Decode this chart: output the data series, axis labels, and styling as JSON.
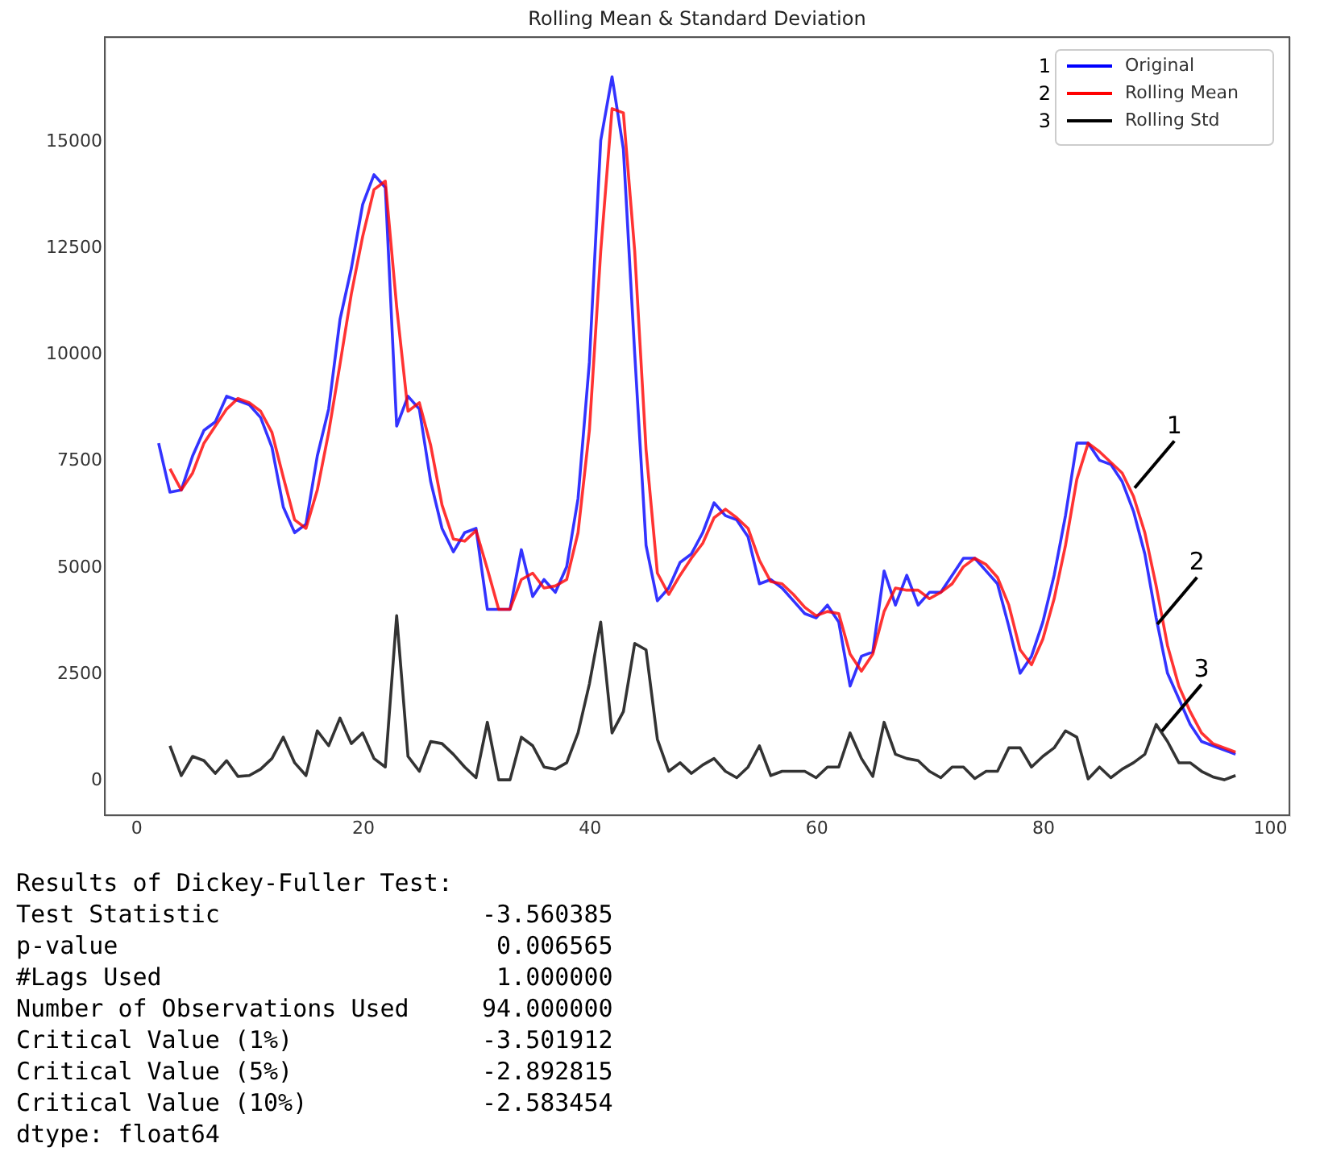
{
  "chart_data": {
    "type": "line",
    "title": "Rolling Mean & Standard Deviation",
    "xlim": [
      -2.75,
      101.75
    ],
    "xticks": [
      0,
      20,
      40,
      60,
      80,
      100
    ],
    "ylim": [
      -830,
      17430
    ],
    "yticks": [
      0,
      2500,
      5000,
      7500,
      10000,
      12500,
      15000
    ],
    "grid": false,
    "legend": "top right",
    "marker": "none",
    "line_style": "solid",
    "series": [
      {
        "name": "Original",
        "color": "#0000ff",
        "x": [
          2,
          3,
          4,
          5,
          6,
          7,
          8,
          9,
          10,
          11,
          12,
          13,
          14,
          15,
          16,
          17,
          18,
          19,
          20,
          21,
          22,
          23,
          24,
          25,
          26,
          27,
          28,
          29,
          30,
          31,
          32,
          33,
          34,
          35,
          36,
          37,
          38,
          39,
          40,
          41,
          42,
          43,
          44,
          45,
          46,
          47,
          48,
          49,
          50,
          51,
          52,
          53,
          54,
          55,
          56,
          57,
          58,
          59,
          60,
          61,
          62,
          63,
          64,
          65,
          66,
          67,
          68,
          69,
          70,
          71,
          72,
          73,
          74,
          75,
          76,
          77,
          78,
          79,
          80,
          81,
          82,
          83,
          84,
          85,
          86,
          87,
          88,
          89,
          90,
          91,
          92,
          93,
          94,
          95,
          96,
          97
        ],
        "values": [
          7900,
          6750,
          6800,
          7600,
          8200,
          8400,
          9000,
          8900,
          8800,
          8500,
          7800,
          6400,
          5800,
          6000,
          7600,
          8700,
          10800,
          12000,
          13500,
          14200,
          13900,
          8300,
          9000,
          8700,
          7000,
          5900,
          5350,
          5800,
          5900,
          4000,
          4000,
          4000,
          5400,
          4300,
          4700,
          4400,
          5000,
          6600,
          9800,
          15000,
          16500,
          14800,
          10000,
          5500,
          4200,
          4500,
          5100,
          5300,
          5800,
          6500,
          6200,
          6100,
          5700,
          4600,
          4700,
          4500,
          4200,
          3900,
          3800,
          4100,
          3700,
          2200,
          2900,
          3000,
          4900,
          4100,
          4800,
          4100,
          4400,
          4400,
          4800,
          5200,
          5200,
          4900,
          4600,
          3600,
          2500,
          2900,
          3700,
          4800,
          6200,
          7900,
          7900,
          7500,
          7400,
          7000,
          6300,
          5300,
          3800,
          2500,
          1900,
          1300,
          900,
          800,
          700,
          600
        ]
      },
      {
        "name": "Rolling Mean",
        "color": "#ff0000",
        "x": [
          3,
          4,
          5,
          6,
          7,
          8,
          9,
          10,
          11,
          12,
          13,
          14,
          15,
          16,
          17,
          18,
          19,
          20,
          21,
          22,
          23,
          24,
          25,
          26,
          27,
          28,
          29,
          30,
          31,
          32,
          33,
          34,
          35,
          36,
          37,
          38,
          39,
          40,
          41,
          42,
          43,
          44,
          45,
          46,
          47,
          48,
          49,
          50,
          51,
          52,
          53,
          54,
          55,
          56,
          57,
          58,
          59,
          60,
          61,
          62,
          63,
          64,
          65,
          66,
          67,
          68,
          69,
          70,
          71,
          72,
          73,
          74,
          75,
          76,
          77,
          78,
          79,
          80,
          81,
          82,
          83,
          84,
          85,
          86,
          87,
          88,
          89,
          90,
          91,
          92,
          93,
          94,
          95,
          96,
          97
        ],
        "values": [
          7300,
          6800,
          7200,
          7900,
          8300,
          8700,
          8950,
          8850,
          8650,
          8150,
          7100,
          6100,
          5900,
          6800,
          8150,
          9750,
          11400,
          12750,
          13850,
          14050,
          11100,
          8650,
          8850,
          7850,
          6450,
          5650,
          5600,
          5850,
          4950,
          4000,
          4000,
          4700,
          4850,
          4500,
          4550,
          4700,
          5800,
          8200,
          12400,
          15750,
          15650,
          12400,
          7750,
          4850,
          4350,
          4800,
          5200,
          5550,
          6150,
          6350,
          6150,
          5900,
          5150,
          4650,
          4600,
          4350,
          4050,
          3850,
          3950,
          3900,
          2950,
          2550,
          2950,
          3950,
          4500,
          4450,
          4450,
          4250,
          4400,
          4600,
          5000,
          5200,
          5050,
          4750,
          4100,
          3050,
          2700,
          3300,
          4250,
          5500,
          7050,
          7900,
          7700,
          7450,
          7200,
          6650,
          5800,
          4550,
          3150,
          2200,
          1600,
          1100,
          850,
          750,
          650
        ]
      },
      {
        "name": "Rolling Std",
        "color": "#000000",
        "x": [
          3,
          4,
          5,
          6,
          7,
          8,
          9,
          10,
          11,
          12,
          13,
          14,
          15,
          16,
          17,
          18,
          19,
          20,
          21,
          22,
          23,
          24,
          25,
          26,
          27,
          28,
          29,
          30,
          31,
          32,
          33,
          34,
          35,
          36,
          37,
          38,
          39,
          40,
          41,
          42,
          43,
          44,
          45,
          46,
          47,
          48,
          49,
          50,
          51,
          52,
          53,
          54,
          55,
          56,
          57,
          58,
          59,
          60,
          61,
          62,
          63,
          64,
          65,
          66,
          67,
          68,
          69,
          70,
          71,
          72,
          73,
          74,
          75,
          76,
          77,
          78,
          79,
          80,
          81,
          82,
          83,
          84,
          85,
          86,
          87,
          88,
          89,
          90,
          91,
          92,
          93,
          94,
          95,
          96,
          97
        ],
        "values": [
          800,
          100,
          550,
          450,
          150,
          450,
          80,
          100,
          250,
          500,
          1000,
          400,
          100,
          1150,
          800,
          1450,
          850,
          1100,
          500,
          300,
          3850,
          550,
          200,
          900,
          850,
          600,
          300,
          50,
          1350,
          0,
          0,
          1000,
          800,
          300,
          250,
          400,
          1100,
          2250,
          3700,
          1100,
          1600,
          3200,
          3050,
          950,
          200,
          400,
          150,
          350,
          500,
          200,
          50,
          300,
          800,
          100,
          200,
          200,
          200,
          50,
          300,
          300,
          1100,
          500,
          80,
          1350,
          600,
          500,
          450,
          200,
          50,
          300,
          300,
          30,
          200,
          200,
          750,
          750,
          300,
          550,
          750,
          1150,
          1000,
          20,
          300,
          50,
          250,
          400,
          600,
          1300,
          900,
          400,
          400,
          200,
          70,
          0,
          100
        ]
      }
    ],
    "annotations": [
      {
        "text": "1",
        "x": 88.1,
        "y": 6850
      },
      {
        "text": "2",
        "x": 90.1,
        "y": 3650
      },
      {
        "text": "3",
        "x": 90.5,
        "y": 1140
      },
      "1",
      "2",
      "3",
      "Results of Dickey-Fuller Test:",
      "Test Statistic                  -3.560385",
      "p-value                          0.006565",
      "#Lags Used                       1.000000",
      "Number of Observations Used     94.000000",
      "Critical Value (1%)             -3.501912",
      "Critical Value (5%)             -2.892815",
      "Critical Value (10%)            -2.583454",
      "dtype: float64"
    ]
  }
}
